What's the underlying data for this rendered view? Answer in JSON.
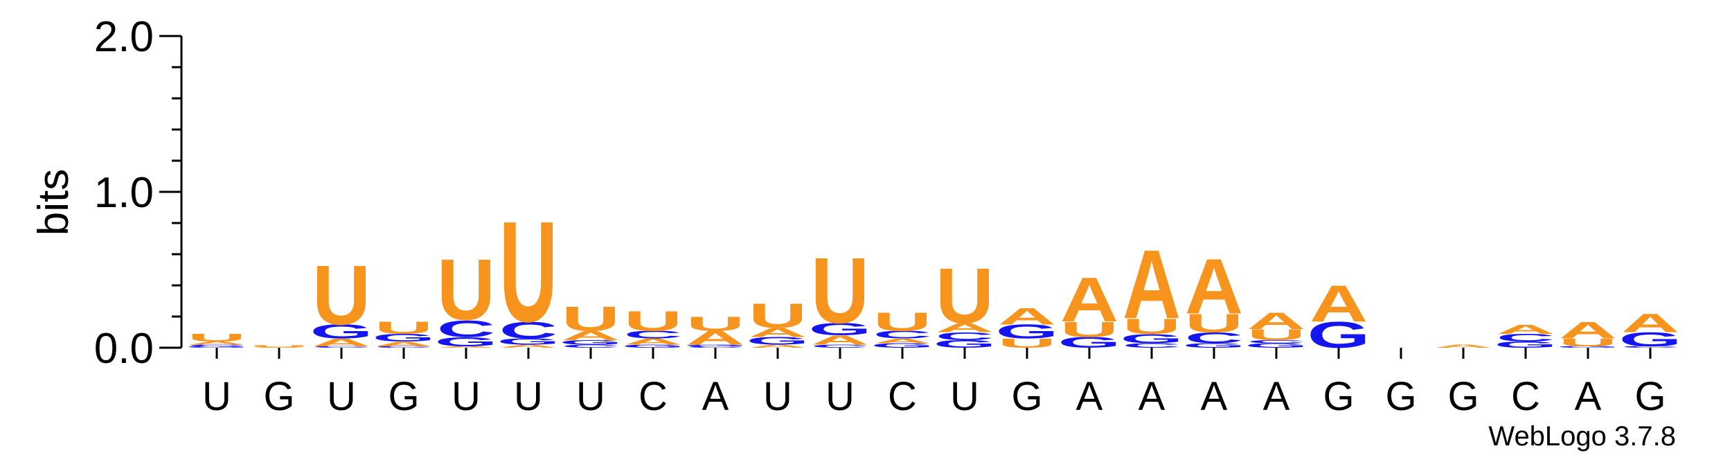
{
  "chart_data": {
    "type": "sequence-logo",
    "ylabel": "bits",
    "ylim": [
      0,
      2.0
    ],
    "yticks": [
      {
        "value": 0.0,
        "label": "0.0"
      },
      {
        "value": 1.0,
        "label": "1.0"
      },
      {
        "value": 2.0,
        "label": "2.0"
      }
    ],
    "x_labels": [
      "U",
      "G",
      "U",
      "G",
      "U",
      "U",
      "U",
      "C",
      "A",
      "U",
      "U",
      "C",
      "U",
      "G",
      "A",
      "A",
      "A",
      "A",
      "G",
      "G",
      "G",
      "C",
      "A",
      "G"
    ],
    "colors": {
      "A": "#f7941d",
      "U": "#f7941d",
      "C": "#1515f0",
      "G": "#1515f0"
    },
    "credit": "WebLogo 3.7.8",
    "positions": [
      {
        "stack": [
          [
            "G",
            0.01
          ],
          [
            "C",
            0.01
          ],
          [
            "A",
            0.02
          ],
          [
            "U",
            0.05
          ]
        ]
      },
      {
        "stack": [
          [
            "A",
            0.005
          ],
          [
            "U",
            0.01
          ]
        ]
      },
      {
        "stack": [
          [
            "C",
            0.01
          ],
          [
            "A",
            0.05
          ],
          [
            "G",
            0.09
          ],
          [
            "U",
            0.39
          ]
        ]
      },
      {
        "stack": [
          [
            "C",
            0.01
          ],
          [
            "A",
            0.03
          ],
          [
            "G",
            0.05
          ],
          [
            "U",
            0.08
          ]
        ]
      },
      {
        "stack": [
          [
            "A",
            0.01
          ],
          [
            "G",
            0.06
          ],
          [
            "C",
            0.11
          ],
          [
            "U",
            0.4
          ]
        ]
      },
      {
        "stack": [
          [
            "A",
            0.02
          ],
          [
            "G",
            0.04
          ],
          [
            "C",
            0.11
          ],
          [
            "U",
            0.66
          ]
        ]
      },
      {
        "stack": [
          [
            "C",
            0.02
          ],
          [
            "G",
            0.03
          ],
          [
            "A",
            0.06
          ],
          [
            "U",
            0.16
          ]
        ]
      },
      {
        "stack": [
          [
            "G",
            0.02
          ],
          [
            "A",
            0.04
          ],
          [
            "C",
            0.05
          ],
          [
            "U",
            0.13
          ]
        ]
      },
      {
        "stack": [
          [
            "C",
            0.01
          ],
          [
            "G",
            0.01
          ],
          [
            "A",
            0.09
          ],
          [
            "U",
            0.09
          ]
        ]
      },
      {
        "stack": [
          [
            "A",
            0.02
          ],
          [
            "G",
            0.05
          ],
          [
            "A",
            0.06
          ],
          [
            "U",
            0.16
          ]
        ]
      },
      {
        "stack": [
          [
            "C",
            0.02
          ],
          [
            "A",
            0.06
          ],
          [
            "G",
            0.08
          ],
          [
            "U",
            0.43
          ]
        ]
      },
      {
        "stack": [
          [
            "G",
            0.03
          ],
          [
            "A",
            0.03
          ],
          [
            "C",
            0.05
          ],
          [
            "U",
            0.12
          ]
        ]
      },
      {
        "stack": [
          [
            "G",
            0.05
          ],
          [
            "C",
            0.05
          ],
          [
            "A",
            0.06
          ],
          [
            "U",
            0.36
          ]
        ]
      },
      {
        "stack": [
          [
            "U",
            0.06
          ],
          [
            "G",
            0.09
          ],
          [
            "A",
            0.11
          ]
        ]
      },
      {
        "stack": [
          [
            "G",
            0.07
          ],
          [
            "U",
            0.1
          ],
          [
            "A",
            0.29
          ]
        ]
      },
      {
        "stack": [
          [
            "C",
            0.03
          ],
          [
            "G",
            0.06
          ],
          [
            "U",
            0.1
          ],
          [
            "A",
            0.45
          ]
        ]
      },
      {
        "stack": [
          [
            "G",
            0.03
          ],
          [
            "C",
            0.07
          ],
          [
            "U",
            0.12
          ],
          [
            "A",
            0.36
          ]
        ]
      },
      {
        "stack": [
          [
            "G",
            0.03
          ],
          [
            "C",
            0.02
          ],
          [
            "U",
            0.07
          ],
          [
            "A",
            0.11
          ]
        ]
      },
      {
        "stack": [
          [
            "G",
            0.17
          ],
          [
            "A",
            0.24
          ]
        ]
      },
      {
        "stack": []
      },
      {
        "stack": [
          [
            "A",
            0.02
          ]
        ]
      },
      {
        "stack": [
          [
            "G",
            0.04
          ],
          [
            "C",
            0.05
          ],
          [
            "A",
            0.06
          ]
        ]
      },
      {
        "stack": [
          [
            "G",
            0.01
          ],
          [
            "U",
            0.05
          ],
          [
            "A",
            0.11
          ]
        ]
      },
      {
        "stack": [
          [
            "C",
            0.01
          ],
          [
            "G",
            0.09
          ],
          [
            "A",
            0.12
          ]
        ]
      }
    ]
  }
}
